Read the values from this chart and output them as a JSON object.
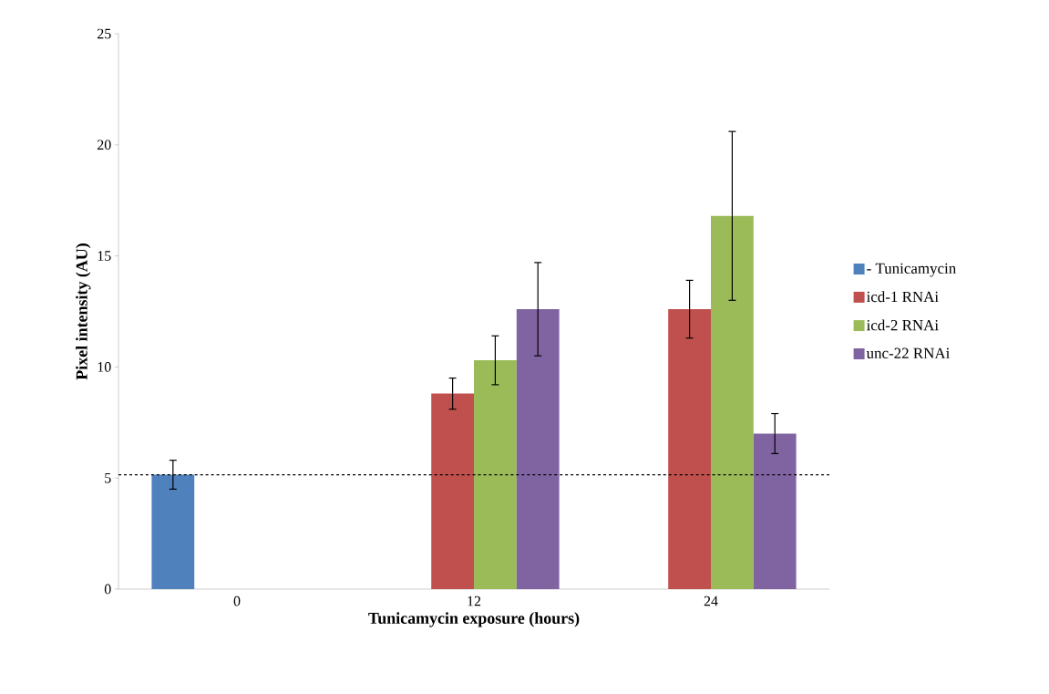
{
  "chart_data": {
    "type": "bar",
    "xlabel": "Tunicamycin exposure (hours)",
    "ylabel": "Pixel intensity (AU)",
    "categories": [
      "0",
      "12",
      "24"
    ],
    "series": [
      {
        "name": "- Tunicamycin",
        "color": "#4f81bd",
        "values": [
          5.15,
          null,
          null
        ],
        "errors": [
          0.65,
          null,
          null
        ]
      },
      {
        "name": "icd-1 RNAi",
        "color": "#c0504d",
        "values": [
          null,
          8.8,
          12.6
        ],
        "errors": [
          null,
          0.7,
          1.3
        ]
      },
      {
        "name": "icd-2 RNAi",
        "color": "#9bbb59",
        "values": [
          null,
          10.3,
          16.8
        ],
        "errors": [
          null,
          1.1,
          3.8
        ]
      },
      {
        "name": "unc-22 RNAi",
        "color": "#8064a2",
        "values": [
          null,
          12.6,
          7.0
        ],
        "errors": [
          null,
          2.1,
          0.9
        ]
      }
    ],
    "ylim": [
      0,
      25
    ],
    "yticks": [
      0,
      5,
      10,
      15,
      20,
      25
    ],
    "ref_lines": [
      {
        "axis": "y",
        "value": 5.15,
        "color": "#000000",
        "line_style": "dashed"
      }
    ],
    "grid": false,
    "legend": "right"
  }
}
